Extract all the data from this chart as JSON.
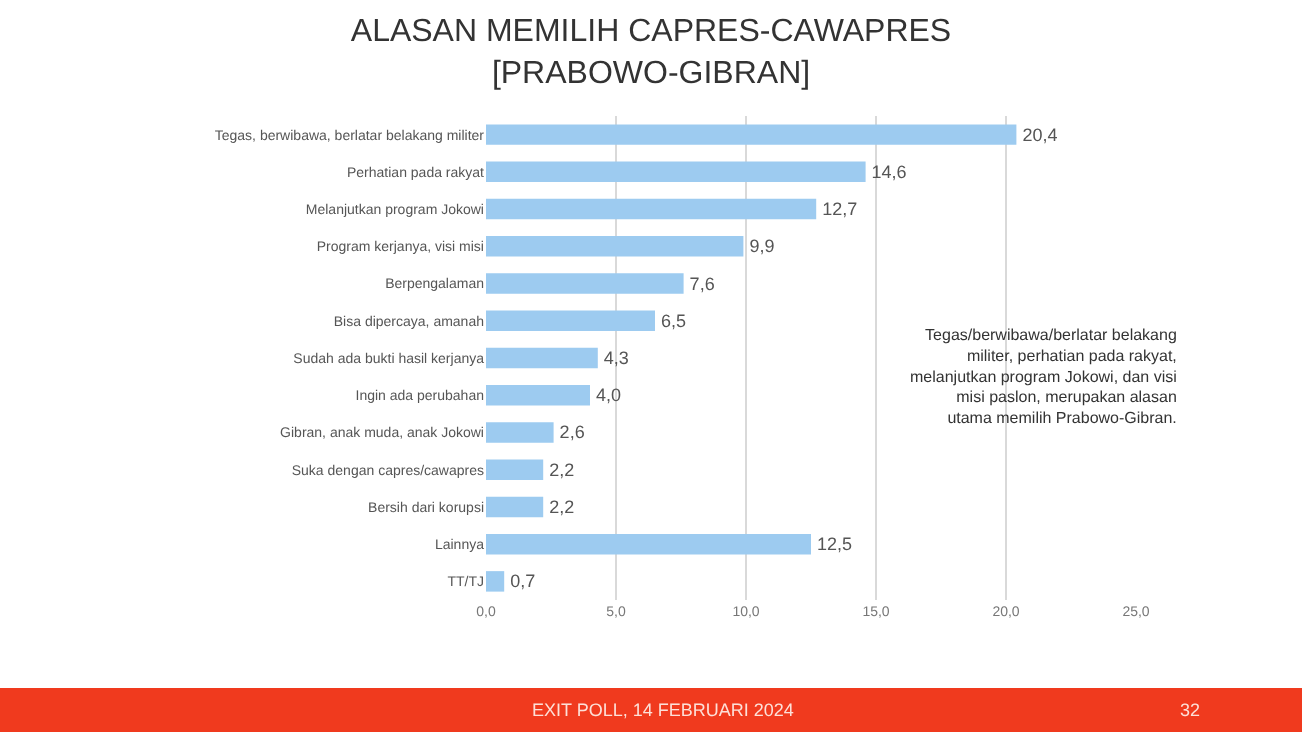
{
  "chart_data": {
    "type": "bar",
    "orientation": "horizontal",
    "title": "ALASAN MEMILIH CAPRES-CAWAPRES\n[PRABOWO-GIBRAN]",
    "categories": [
      "Tegas, berwibawa, berlatar belakang militer",
      "Perhatian pada rakyat",
      "Melanjutkan program Jokowi",
      "Program kerjanya, visi misi",
      "Berpengalaman",
      "Bisa dipercaya, amanah",
      "Sudah ada bukti hasil kerjanya",
      "Ingin ada perubahan",
      "Gibran, anak muda, anak Jokowi",
      "Suka dengan capres/cawapres",
      "Bersih dari korupsi",
      "Lainnya",
      "TT/TJ"
    ],
    "values": [
      20.4,
      14.6,
      12.7,
      9.9,
      7.6,
      6.5,
      4.3,
      4.0,
      2.6,
      2.2,
      2.2,
      12.5,
      0.7
    ],
    "value_labels": [
      "20,4",
      "14,6",
      "12,7",
      "9,9",
      "7,6",
      "6,5",
      "4,3",
      "4,0",
      "2,6",
      "2,2",
      "2,2",
      "12,5",
      "0,7"
    ],
    "color": "#9dcbf0",
    "xlim": [
      0,
      25
    ],
    "xticks": [
      {
        "value": 0,
        "label": "0,0"
      },
      {
        "value": 5,
        "label": "5,0"
      },
      {
        "value": 10,
        "label": "10,0"
      },
      {
        "value": 15,
        "label": "15,0"
      },
      {
        "value": 20,
        "label": "20,0"
      },
      {
        "value": 25,
        "label": "25,0"
      }
    ],
    "grid": "x",
    "annotations": [
      "Tegas/berwibawa/berlatar belakang\nmiliter, perhatian pada rakyat,\nmelanjutkan program Jokowi, dan visi\nmisi paslon, merupakan alasan\nutama memilih Prabowo-Gibran.",
      "EXIT POLL, 14 FEBRUARI 2024",
      "32"
    ]
  }
}
